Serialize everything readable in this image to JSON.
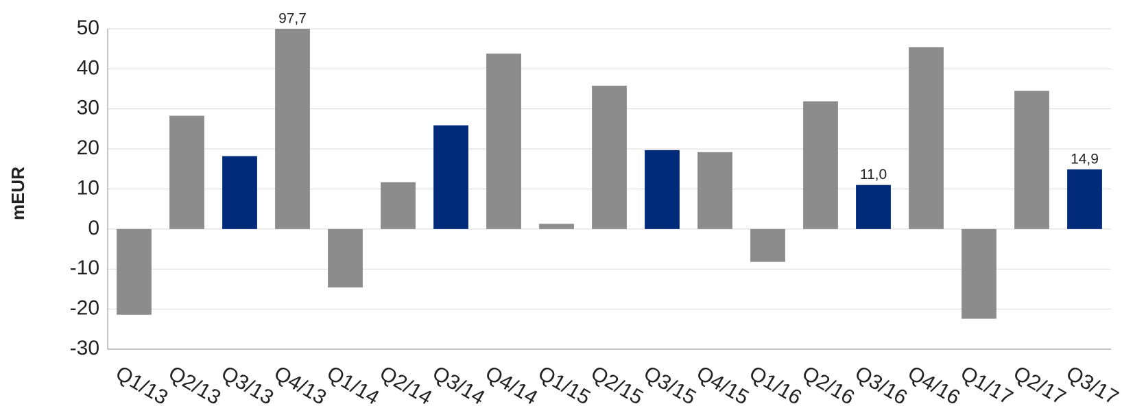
{
  "chart_data": {
    "type": "bar",
    "y_label": "mEUR",
    "categories": [
      "Q1/13",
      "Q2/13",
      "Q3/13",
      "Q4/13",
      "Q1/14",
      "Q2/14",
      "Q3/14",
      "Q4/14",
      "Q1/15",
      "Q2/15",
      "Q3/15",
      "Q4/15",
      "Q1/16",
      "Q2/16",
      "Q3/16",
      "Q4/16",
      "Q1/17",
      "Q2/17",
      "Q3/17"
    ],
    "values": [
      -21.4,
      28.3,
      18.2,
      97.7,
      -14.6,
      11.7,
      25.9,
      43.8,
      1.3,
      35.8,
      19.7,
      19.2,
      -8.2,
      31.9,
      11.0,
      45.4,
      -22.4,
      34.5,
      14.9
    ],
    "value_labels": [
      null,
      null,
      null,
      "97,7",
      null,
      null,
      null,
      null,
      null,
      null,
      null,
      null,
      null,
      null,
      "11,0",
      null,
      null,
      null,
      "14,9"
    ],
    "colors": [
      "#8c8c8c",
      "#8c8c8c",
      "#002b7a",
      "#8c8c8c",
      "#8c8c8c",
      "#8c8c8c",
      "#002b7a",
      "#8c8c8c",
      "#8c8c8c",
      "#8c8c8c",
      "#002b7a",
      "#8c8c8c",
      "#8c8c8c",
      "#8c8c8c",
      "#002b7a",
      "#8c8c8c",
      "#8c8c8c",
      "#8c8c8c",
      "#002b7a"
    ],
    "ylim": [
      -30,
      50
    ],
    "yticks": [
      -30,
      -20,
      -10,
      0,
      10,
      20,
      30,
      40,
      50
    ],
    "grid": true
  }
}
